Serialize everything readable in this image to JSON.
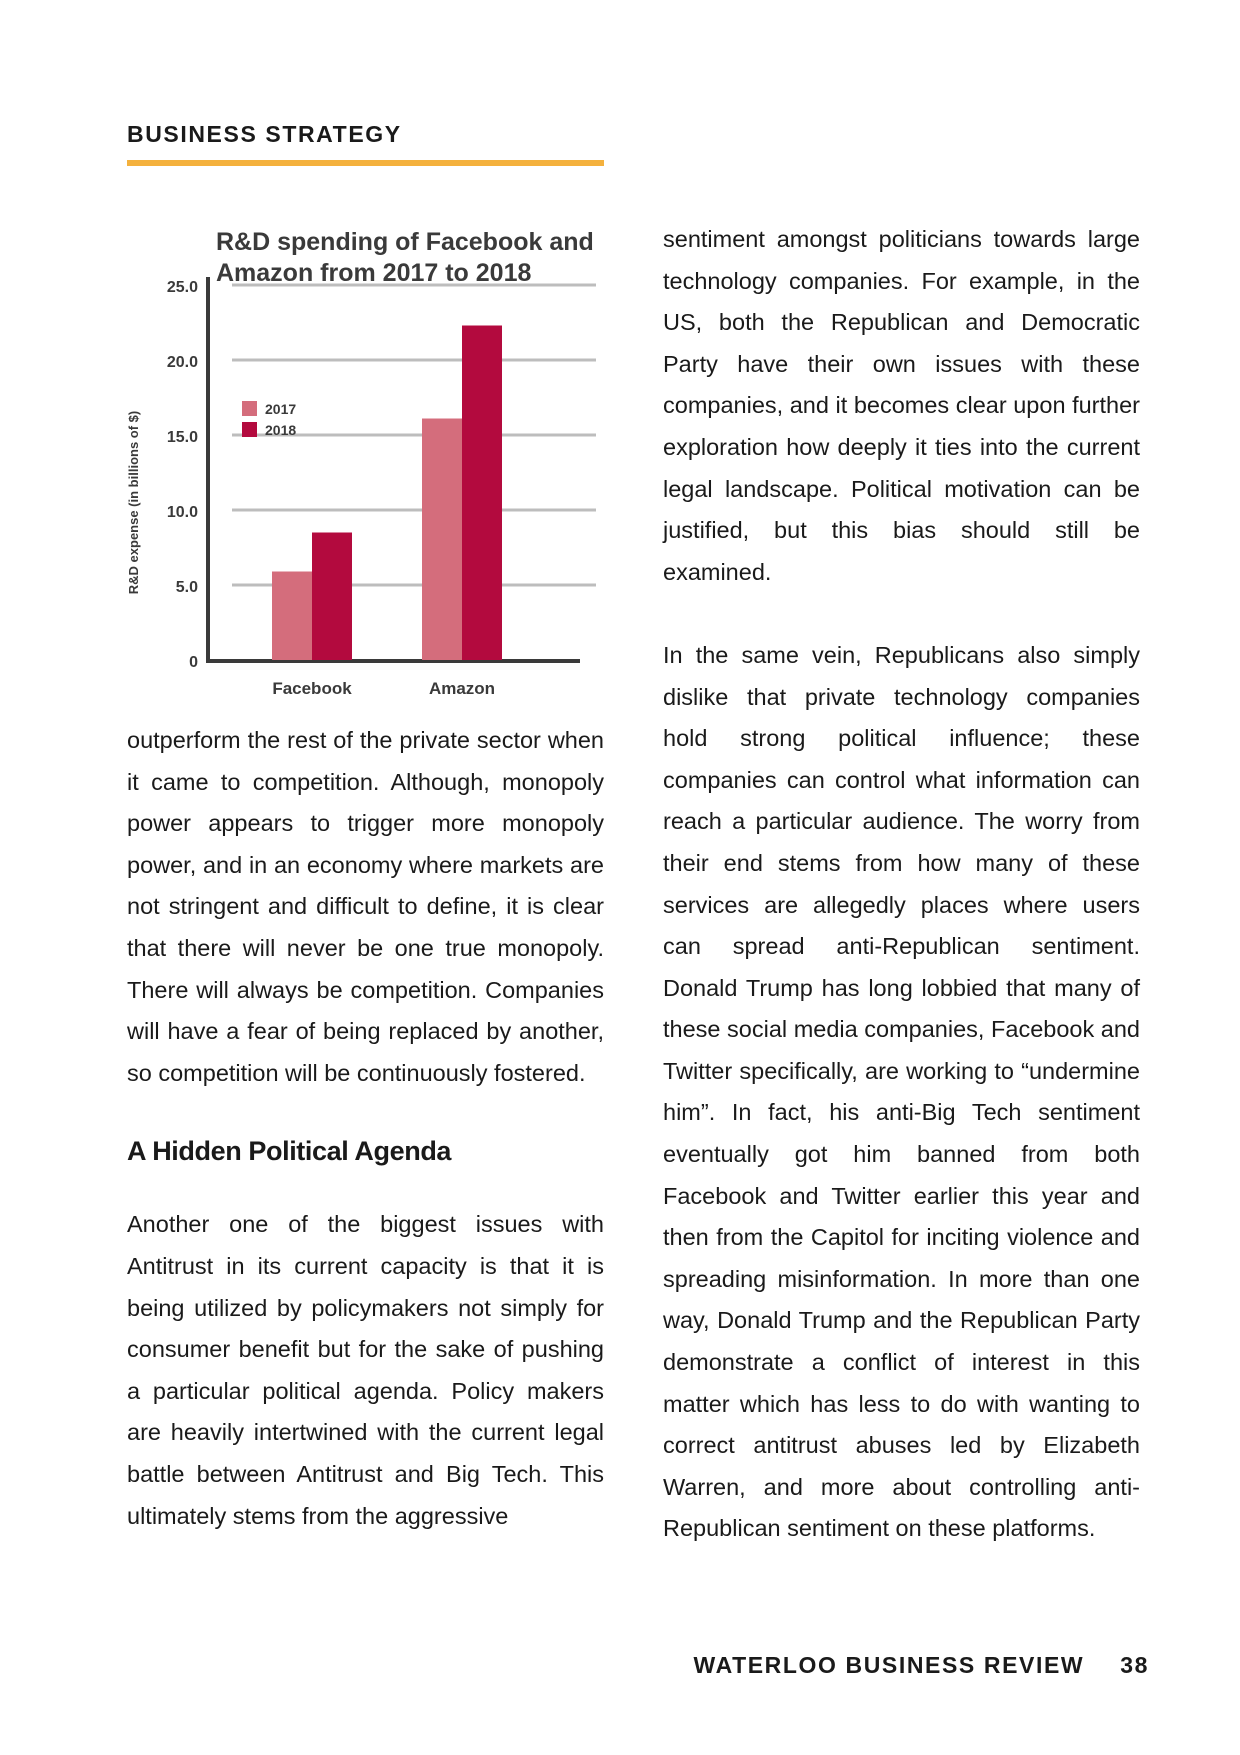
{
  "header": {
    "section": "BUSINESS STRATEGY"
  },
  "chart_data": {
    "type": "bar",
    "title": "R&D spending of Facebook and Amazon from 2017 to 2018",
    "title_lines": [
      "R&D spending of Facebook and",
      "Amazon from 2017 to 2018"
    ],
    "ylabel": "R&D expense (in billions of $)",
    "xlabel": "",
    "categories": [
      "Facebook",
      "Amazon"
    ],
    "series": [
      {
        "name": "2017",
        "values": [
          5.9,
          16.1
        ],
        "color": "#d46d7c"
      },
      {
        "name": "2018",
        "values": [
          8.5,
          22.3
        ],
        "color": "#b30a3e"
      }
    ],
    "ylim": [
      0,
      25
    ],
    "yticks": [
      "0",
      "5.0",
      "10.0",
      "15.0",
      "20.0",
      "25.0"
    ],
    "grid": true,
    "legend": "top-left"
  },
  "left_column": {
    "para1": "outperform the rest of the private sector when it came to competition. Although, monopoly power appears to trigger more monopoly power, and in an economy where markets are not stringent and difficult to define, it is clear that there will never be one true monopoly. There will always be competition. Companies will have a fear of being replaced by another, so competition will be continuously fostered.",
    "heading": "A Hidden Political Agenda",
    "para2": "Another one of the biggest issues with Antitrust in its current capacity is that it is being utilized by policymakers not simply for consumer benefit but for the sake of pushing a particular political agenda. Policy makers are heavily intertwined with the current legal battle between Antitrust and Big Tech. This ultimately stems from the aggressive"
  },
  "right_column": {
    "para1": "sentiment amongst politicians towards large technology companies. For example, in the US, both the Republican and Democratic Party have their own issues with these companies, and it becomes clear upon further exploration how deeply it ties into the current legal landscape. Political motivation can be justified, but this bias should still be examined.",
    "para2": "In the same vein, Republicans also simply dislike that private technology companies hold strong political influence; these companies can control what information can reach a particular audience. The worry from their end stems from how many of these services are allegedly places where users can spread anti-Republican sentiment. Donald Trump has long lobbied that many of these social media companies, Facebook and Twitter specifically, are working to “undermine him”. In fact, his anti-Big Tech sentiment eventually got him banned from both Facebook and Twitter earlier this year and then from the Capitol for inciting violence and spreading misinformation. In more than one way, Donald Trump and the Republican Party demonstrate a conflict of interest in this matter which has less to do with wanting to correct antitrust abuses led by Elizabeth Warren, and more about controlling anti-Republican sentiment on these platforms."
  },
  "footer": {
    "publication": "WATERLOO BUSINESS REVIEW",
    "page_number": "38"
  }
}
